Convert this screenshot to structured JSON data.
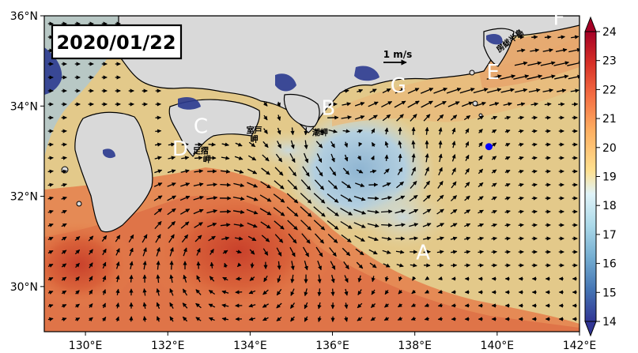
{
  "date_label": "2020/01/22",
  "scale": {
    "label": "1 m/s"
  },
  "axes": {
    "lat_ticks": [
      {
        "value": 36,
        "label": "36°N"
      },
      {
        "value": 34,
        "label": "34°N"
      },
      {
        "value": 32,
        "label": "32°N"
      },
      {
        "value": 30,
        "label": "30°N"
      }
    ],
    "lon_ticks": [
      {
        "value": 130,
        "label": "130°E"
      },
      {
        "value": 132,
        "label": "132°E"
      },
      {
        "value": 134,
        "label": "134°E"
      },
      {
        "value": 136,
        "label": "136°E"
      },
      {
        "value": 138,
        "label": "138°E"
      },
      {
        "value": 140,
        "label": "140°E"
      },
      {
        "value": 142,
        "label": "142°E"
      }
    ],
    "lon_range": [
      129,
      142
    ],
    "lat_range": [
      29,
      36
    ]
  },
  "colorbar": {
    "min": 14,
    "max": 24,
    "tick_values": [
      14,
      15,
      16,
      17,
      18,
      19,
      20,
      21,
      22,
      23,
      24
    ],
    "tick_labels": [
      "14",
      "15",
      "16",
      "17",
      "18",
      "19",
      "20",
      "21",
      "22",
      "23",
      "24"
    ],
    "colors": [
      "#313695",
      "#4575b4",
      "#74add1",
      "#abd9e9",
      "#e0f3f8",
      "#fee090",
      "#fdae61",
      "#f46d43",
      "#d73027",
      "#a50026"
    ]
  },
  "region_labels": [
    {
      "text": "A",
      "lon": 138.2,
      "lat": 30.6
    },
    {
      "text": "B",
      "lon": 135.9,
      "lat": 33.8
    },
    {
      "text": "C",
      "lon": 132.8,
      "lat": 33.4
    },
    {
      "text": "D",
      "lon": 132.3,
      "lat": 32.9
    },
    {
      "text": "E",
      "lon": 139.9,
      "lat": 34.6
    },
    {
      "text": "F",
      "lon": 141.5,
      "lat": 35.8
    },
    {
      "text": "G",
      "lon": 137.6,
      "lat": 34.3
    }
  ],
  "place_labels": [
    {
      "text": "室戸",
      "lon": 134.1,
      "lat": 33.4
    },
    {
      "text": "岬",
      "lon": 134.1,
      "lat": 33.2
    },
    {
      "text": "潮岬",
      "lon": 135.7,
      "lat": 33.35
    },
    {
      "text": "足摺",
      "lon": 132.8,
      "lat": 32.95
    },
    {
      "text": "岬",
      "lon": 132.95,
      "lat": 32.75
    },
    {
      "text": "房総半島",
      "lon": 140.35,
      "lat": 35.4
    }
  ],
  "marker": {
    "lon": 139.8,
    "lat": 33.1,
    "color": "#0000ff"
  },
  "colors": {
    "land": "#d9d9d9",
    "coast": "#000000",
    "shelf": "#2b3a8f",
    "marker": "#0000ff"
  }
}
